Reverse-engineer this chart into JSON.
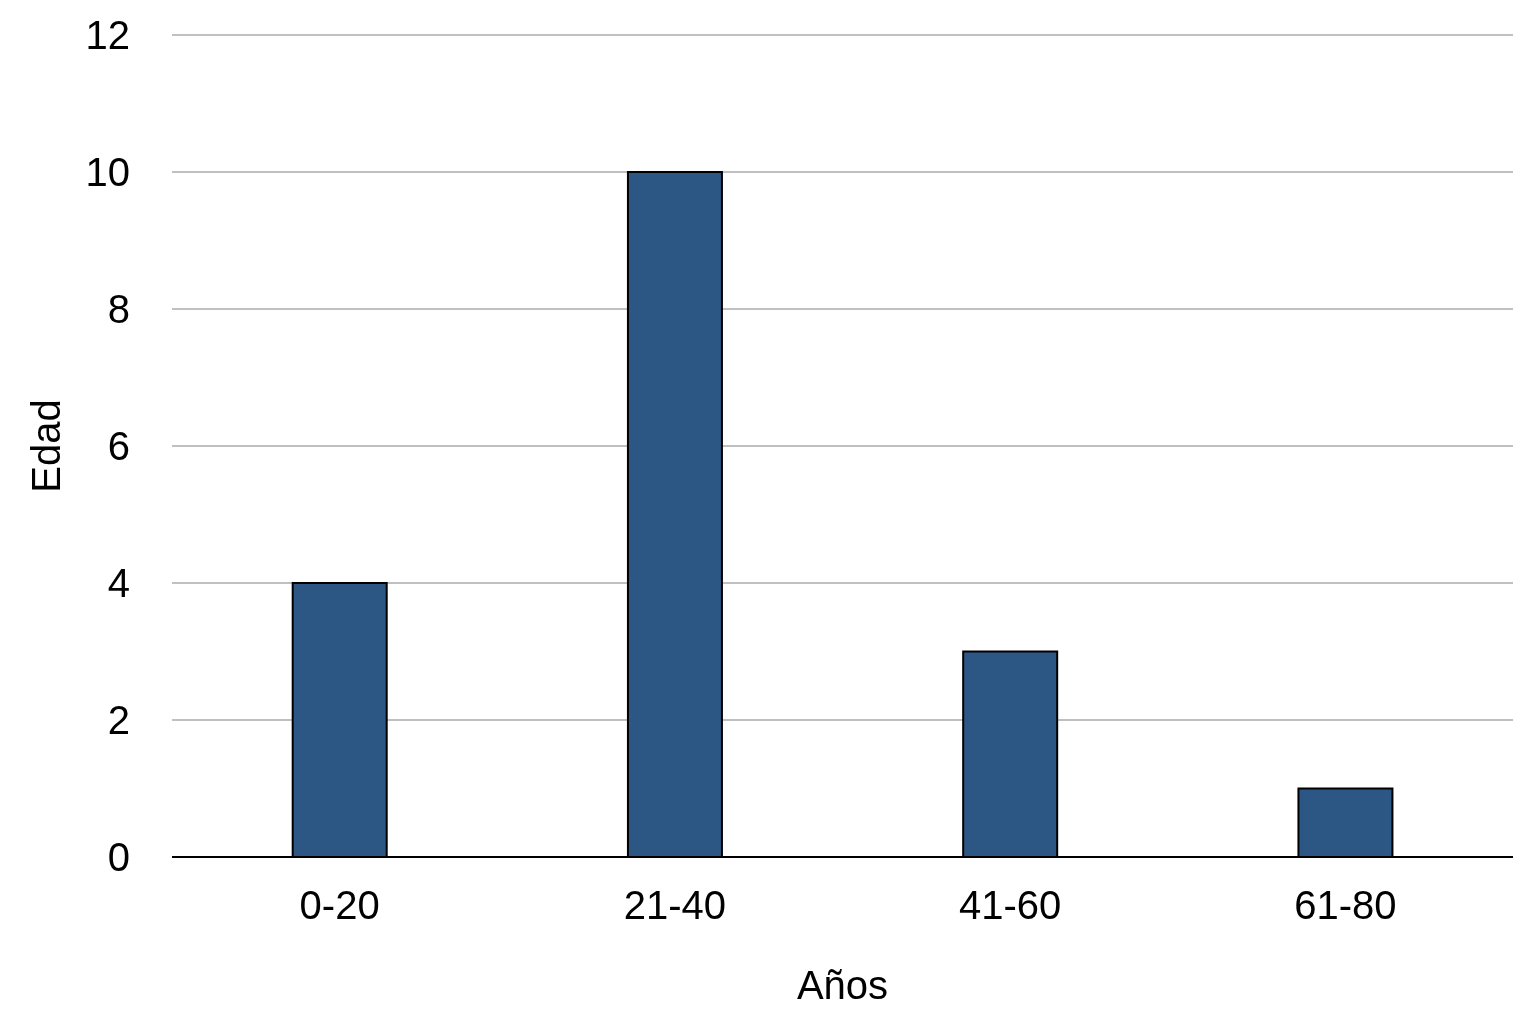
{
  "chart_data": {
    "type": "bar",
    "xlabel": "Años",
    "ylabel": "Edad",
    "categories": [
      "0-20",
      "21-40",
      "41-60",
      "61-80"
    ],
    "values": [
      4,
      10,
      3,
      1
    ],
    "color": "#2c5784",
    "ylim": [
      0,
      12
    ],
    "yticks": [
      0,
      2,
      4,
      6,
      8,
      10,
      12
    ],
    "grid": "y"
  }
}
